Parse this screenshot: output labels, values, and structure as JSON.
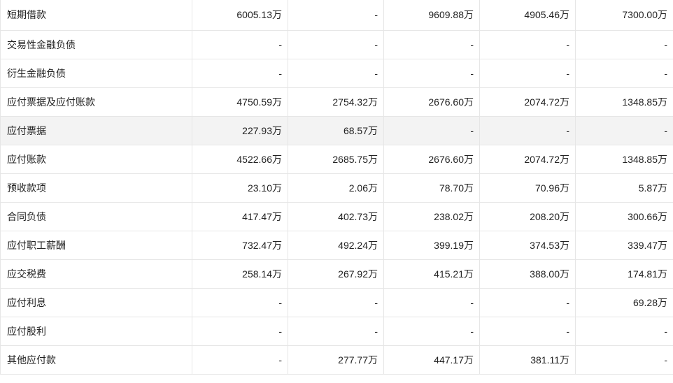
{
  "rows": [
    {
      "label": "短期借款",
      "values": [
        "6005.13万",
        "-",
        "9609.88万",
        "4905.46万",
        "7300.00万"
      ]
    },
    {
      "label": "交易性金融负债",
      "values": [
        "-",
        "-",
        "-",
        "-",
        "-"
      ]
    },
    {
      "label": "衍生金融负债",
      "values": [
        "-",
        "-",
        "-",
        "-",
        "-"
      ]
    },
    {
      "label": "应付票据及应付账款",
      "values": [
        "4750.59万",
        "2754.32万",
        "2676.60万",
        "2074.72万",
        "1348.85万"
      ]
    },
    {
      "label": "应付票据",
      "values": [
        "227.93万",
        "68.57万",
        "-",
        "-",
        "-"
      ]
    },
    {
      "label": "应付账款",
      "values": [
        "4522.66万",
        "2685.75万",
        "2676.60万",
        "2074.72万",
        "1348.85万"
      ]
    },
    {
      "label": "预收款项",
      "values": [
        "23.10万",
        "2.06万",
        "78.70万",
        "70.96万",
        "5.87万"
      ]
    },
    {
      "label": "合同负债",
      "values": [
        "417.47万",
        "402.73万",
        "238.02万",
        "208.20万",
        "300.66万"
      ]
    },
    {
      "label": "应付职工薪酬",
      "values": [
        "732.47万",
        "492.24万",
        "399.19万",
        "374.53万",
        "339.47万"
      ]
    },
    {
      "label": "应交税费",
      "values": [
        "258.14万",
        "267.92万",
        "415.21万",
        "388.00万",
        "174.81万"
      ]
    },
    {
      "label": "应付利息",
      "values": [
        "-",
        "-",
        "-",
        "-",
        "69.28万"
      ]
    },
    {
      "label": "应付股利",
      "values": [
        "-",
        "-",
        "-",
        "-",
        "-"
      ]
    },
    {
      "label": "其他应付款",
      "values": [
        "-",
        "277.77万",
        "447.17万",
        "381.11万",
        "-"
      ]
    }
  ]
}
